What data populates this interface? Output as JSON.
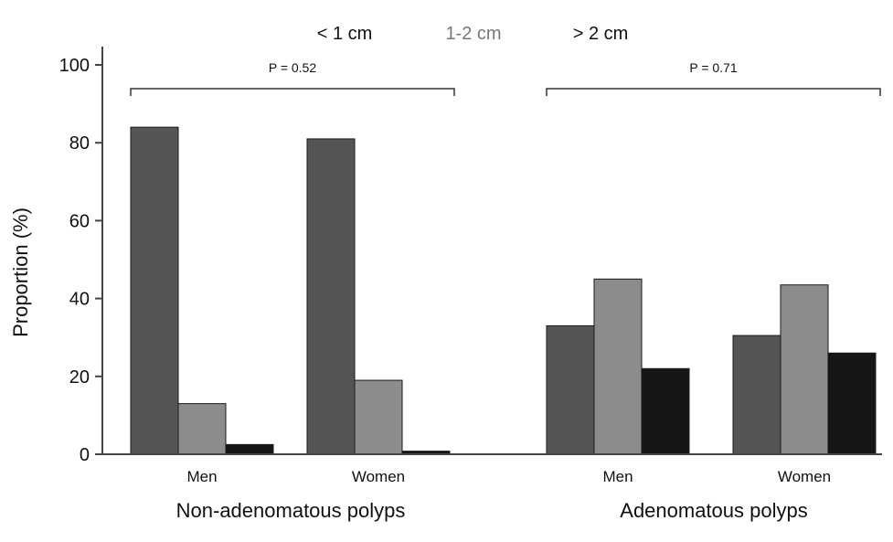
{
  "chart_data": {
    "type": "bar",
    "title": "",
    "ylabel": "Proportion (%)",
    "ylim": [
      0,
      100
    ],
    "yticks": [
      0,
      20,
      40,
      60,
      80,
      100
    ],
    "grid": false,
    "legend_position": "top",
    "series": [
      {
        "name": "< 1 cm",
        "color": "#555555"
      },
      {
        "name": "1-2 cm",
        "color": "#8c8c8c"
      },
      {
        "name": "> 2 cm",
        "color": "#161616"
      }
    ],
    "groups": [
      {
        "label": "Non-adenomatous polyps",
        "p_value": "P = 0.52",
        "categories": [
          {
            "label": "Men",
            "values": [
              84,
              13,
              2.5
            ]
          },
          {
            "label": "Women",
            "values": [
              81,
              19,
              0.8
            ]
          }
        ]
      },
      {
        "label": "Adenomatous polyps",
        "p_value": "P = 0.71",
        "categories": [
          {
            "label": "Men",
            "values": [
              33,
              45,
              22
            ]
          },
          {
            "label": "Women",
            "values": [
              30.5,
              43.5,
              26
            ]
          }
        ]
      }
    ]
  }
}
